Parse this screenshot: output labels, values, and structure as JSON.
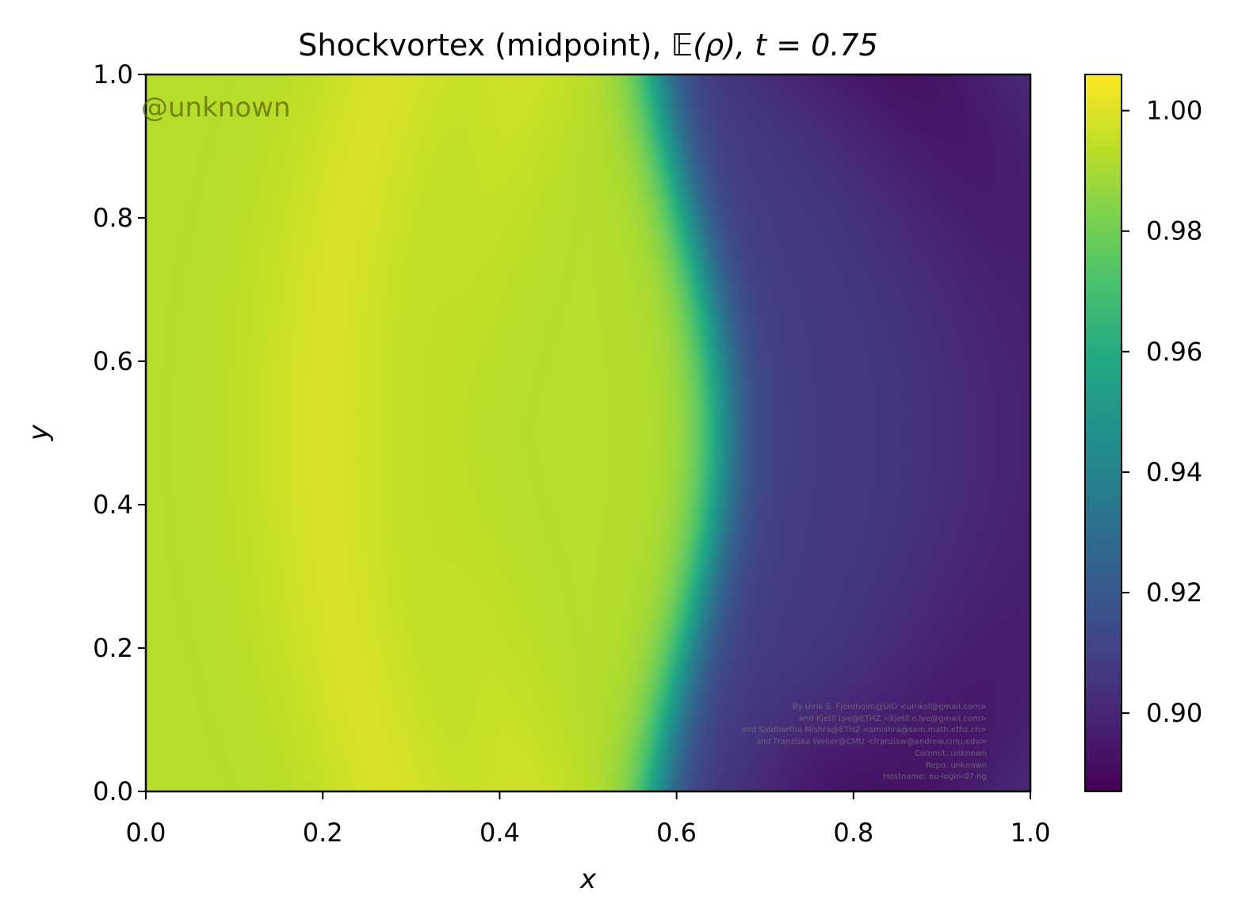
{
  "chart_data": {
    "type": "heatmap",
    "title_text": "Shockvortex (midpoint), ",
    "title_math": "𝔼(ρ), t = 0.75",
    "xlabel": "x",
    "ylabel": "y",
    "xlim": [
      0.0,
      1.0
    ],
    "ylim": [
      0.0,
      1.0
    ],
    "xticks": [
      "0.0",
      "0.2",
      "0.4",
      "0.6",
      "0.8",
      "1.0"
    ],
    "yticks": [
      "0.0",
      "0.2",
      "0.4",
      "0.6",
      "0.8",
      "1.0"
    ],
    "colorbar": {
      "range": [
        0.887,
        1.006
      ],
      "ticks": [
        0.9,
        0.92,
        0.94,
        0.96,
        0.98,
        1.0
      ],
      "tick_labels": [
        "0.90",
        "0.92",
        "0.94",
        "0.96",
        "0.98",
        "1.00"
      ],
      "colormap": "viridis"
    },
    "field_description": {
      "high_region": "x < 0.55, values around 0.99–1.005",
      "shock_front": "sharp drop near x ≈ 0.56–0.66",
      "low_region": "x > 0.65, values around 0.89–0.91, minimum in a curved band near x ≈ 0.85"
    }
  },
  "watermark": "@unknown",
  "credits": [
    "By Ulrik S. Fjordholm@UiO <ulriksf@gmail.com>",
    "and Kjetil Lye@ETHZ <kjetil.o.lye@gmail.com>",
    "and Siddhartha Mishra@ETHZ <smishra@sam.math.ethz.ch>",
    "and Franziska Weber@CMU <franzisw@andrew.cmu.edu>",
    "Commit: unknown",
    "Repo: unknown",
    "Hostname: eu-login-07-ng"
  ]
}
